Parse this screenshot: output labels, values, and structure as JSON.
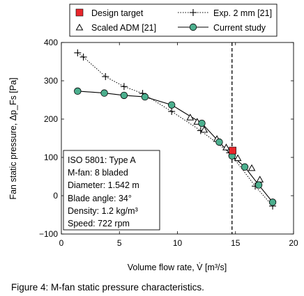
{
  "chart_data": {
    "type": "scatter",
    "xlabel": "Volume flow rate, V̇ [m³/s]",
    "ylabel": "Fan static pressure, Δp_Fs [Pa]",
    "xlim": [
      0,
      20
    ],
    "ylim": [
      -100,
      400
    ],
    "xticks": [
      0,
      5,
      10,
      15,
      20
    ],
    "yticks": [
      -100,
      0,
      100,
      200,
      300,
      400
    ],
    "grid": false,
    "legend_position": "top",
    "design_line_x": 14.7,
    "series": [
      {
        "name": "Design target",
        "marker": "square",
        "color": "#e8262b",
        "x": [
          14.75
        ],
        "y": [
          118
        ]
      },
      {
        "name": "Exp. 2 mm [21]",
        "marker": "plus",
        "line": "dotted",
        "color": "#000000",
        "x": [
          1.4,
          1.9,
          3.8,
          5.4,
          7.0,
          9.5,
          12.0,
          14.5,
          16.7,
          18.2
        ],
        "y": [
          373,
          362,
          311,
          285,
          267,
          220,
          170,
          112,
          25,
          -27
        ]
      },
      {
        "name": "Scaled ADM [21]",
        "marker": "triangle",
        "color": "#000000",
        "x": [
          11.1,
          11.7,
          12.3,
          13.4,
          14.2,
          15.2,
          16.4,
          17.1
        ],
        "y": [
          204,
          193,
          172,
          148,
          126,
          98,
          72,
          42
        ]
      },
      {
        "name": "Current study",
        "marker": "circle",
        "line": "solid",
        "color": "#4caf8e",
        "x": [
          1.4,
          3.7,
          5.4,
          7.2,
          9.5,
          12.1,
          13.6,
          14.7,
          15.8,
          17.0,
          18.2
        ],
        "y": [
          273,
          268,
          262,
          258,
          237,
          189,
          140,
          104,
          75,
          28,
          -17
        ]
      }
    ]
  },
  "legend": {
    "design_target": "Design target",
    "exp": "Exp. 2 mm [21]",
    "adm": "Scaled ADM [21]",
    "current": "Current study"
  },
  "info_box": [
    "ISO 5801: Type A",
    "M-fan: 8 bladed",
    "Diameter: 1.542 m",
    "Blade angle: 34°",
    "Density: 1.2 kg/m³",
    "Speed: 722 rpm"
  ],
  "caption": "Figure 4:   M-fan static pressure characteristics."
}
